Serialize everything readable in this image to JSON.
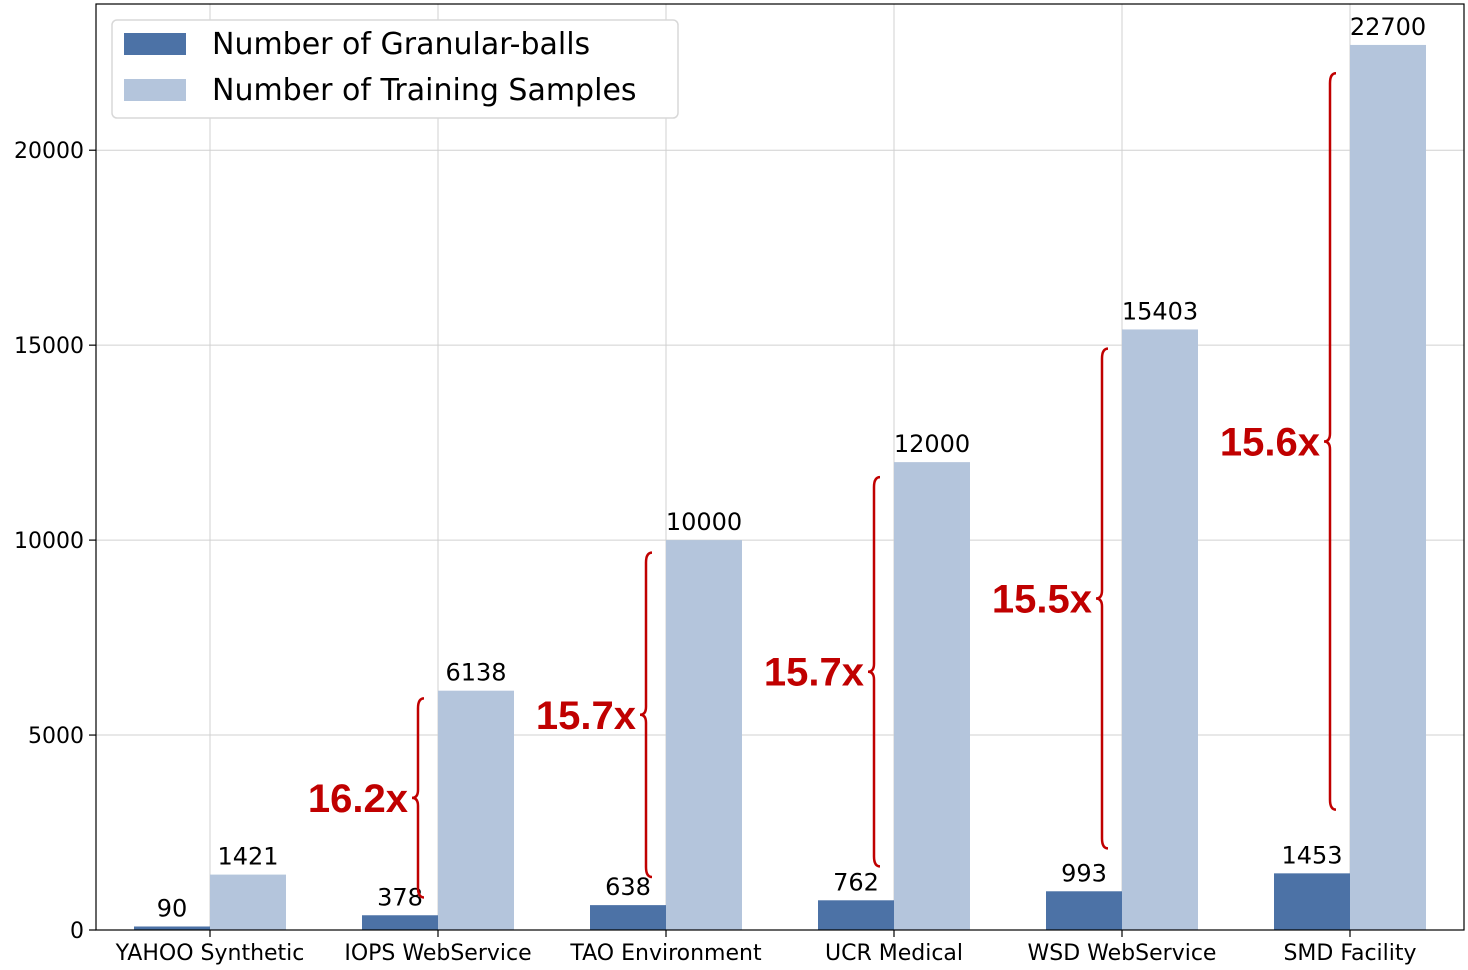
{
  "chart_data": {
    "type": "bar",
    "categories": [
      "YAHOO Synthetic",
      "IOPS WebService",
      "TAO Environment",
      "UCR Medical",
      "WSD WebService",
      "SMD Facility"
    ],
    "series": [
      {
        "name": "Number of Granular-balls",
        "values": [
          90,
          378,
          638,
          762,
          993,
          1453
        ],
        "color": "#4c72a6"
      },
      {
        "name": "Number of Training Samples",
        "values": [
          1421,
          6138,
          10000,
          12000,
          15403,
          22700
        ],
        "color": "#b4c5dc"
      }
    ],
    "ratios": [
      null,
      "16.2x",
      "15.7x",
      "15.7x",
      "15.5x",
      "15.6x"
    ],
    "ratio_color": "#c00000",
    "ylim": [
      0,
      23750
    ],
    "yticks": [
      0,
      5000,
      10000,
      15000,
      20000
    ],
    "grid": true,
    "legend_position": "top-left",
    "title": "",
    "xlabel": "",
    "ylabel": ""
  }
}
